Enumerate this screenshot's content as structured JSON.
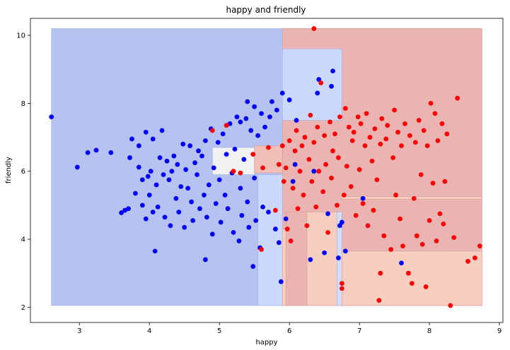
{
  "chart_data": {
    "type": "scatter",
    "title": "happy and friendly",
    "xlabel": "happy",
    "ylabel": "friendly",
    "xlim": [
      2.3,
      9.05
    ],
    "ylim": [
      1.55,
      10.5
    ],
    "xticks": [
      3,
      4,
      5,
      6,
      7,
      8,
      9
    ],
    "yticks": [
      2,
      4,
      6,
      8,
      10
    ],
    "grid": false,
    "colors": {
      "class0": "#0000ff",
      "class1": "#ff0000"
    },
    "decision_regions": [
      {
        "x": [
          2.6,
          8.75
        ],
        "y": [
          2.05,
          10.2
        ],
        "value": 0.0
      },
      {
        "x": [
          5.9,
          8.75
        ],
        "y": [
          2.05,
          10.2
        ],
        "value": 1.0
      },
      {
        "x": [
          5.9,
          6.75
        ],
        "y": [
          7.5,
          9.6
        ],
        "value": 0.25
      },
      {
        "x": [
          4.9,
          5.5
        ],
        "y": [
          5.9,
          6.7
        ],
        "value": 0.5
      },
      {
        "x": [
          5.5,
          5.9
        ],
        "y": [
          5.95,
          6.75
        ],
        "value": 0.9
      },
      {
        "x": [
          5.55,
          5.9
        ],
        "y": [
          2.05,
          5.9
        ],
        "value": 0.25
      },
      {
        "x": [
          5.9,
          5.95
        ],
        "y": [
          2.05,
          4.3
        ],
        "value": 0.75
      },
      {
        "x": [
          5.95,
          6.25
        ],
        "y": [
          2.05,
          4.8
        ],
        "value": 1.0
      },
      {
        "x": [
          6.25,
          6.68
        ],
        "y": [
          2.05,
          4.8
        ],
        "value": 0.75
      },
      {
        "x": [
          6.68,
          6.75
        ],
        "y": [
          2.05,
          4.8
        ],
        "value": 0.3
      },
      {
        "x": [
          6.75,
          8.75
        ],
        "y": [
          2.05,
          3.65
        ],
        "value": 0.75
      },
      {
        "x": [
          6.75,
          8.75
        ],
        "y": [
          5.18,
          5.25
        ],
        "value": 0.75
      }
    ],
    "series": [
      {
        "class": 0,
        "points": [
          [
            2.6,
            7.6
          ],
          [
            2.97,
            6.12
          ],
          [
            3.12,
            6.55
          ],
          [
            3.24,
            6.62
          ],
          [
            3.45,
            6.55
          ],
          [
            3.6,
            4.78
          ],
          [
            3.65,
            4.85
          ],
          [
            3.7,
            4.9
          ],
          [
            3.72,
            6.4
          ],
          [
            3.75,
            6.95
          ],
          [
            3.8,
            5.35
          ],
          [
            3.85,
            6.12
          ],
          [
            3.85,
            6.75
          ],
          [
            3.9,
            5.0
          ],
          [
            3.9,
            5.75
          ],
          [
            3.95,
            7.15
          ],
          [
            3.95,
            4.6
          ],
          [
            3.98,
            5.85
          ],
          [
            4.0,
            5.3
          ],
          [
            4.02,
            6.0
          ],
          [
            4.05,
            4.8
          ],
          [
            4.05,
            6.95
          ],
          [
            4.08,
            3.65
          ],
          [
            4.1,
            5.6
          ],
          [
            4.12,
            4.95
          ],
          [
            4.15,
            6.4
          ],
          [
            4.18,
            7.2
          ],
          [
            4.2,
            5.9
          ],
          [
            4.22,
            4.65
          ],
          [
            4.25,
            6.3
          ],
          [
            4.28,
            5.75
          ],
          [
            4.3,
            4.4
          ],
          [
            4.32,
            6.0
          ],
          [
            4.35,
            6.45
          ],
          [
            4.38,
            5.2
          ],
          [
            4.4,
            6.2
          ],
          [
            4.42,
            4.8
          ],
          [
            4.45,
            5.55
          ],
          [
            4.48,
            6.8
          ],
          [
            4.5,
            4.35
          ],
          [
            4.52,
            6.05
          ],
          [
            4.55,
            5.5
          ],
          [
            4.58,
            6.75
          ],
          [
            4.6,
            5.1
          ],
          [
            4.62,
            4.55
          ],
          [
            4.65,
            6.25
          ],
          [
            4.68,
            5.9
          ],
          [
            4.7,
            6.6
          ],
          [
            4.72,
            4.9
          ],
          [
            4.75,
            6.45
          ],
          [
            4.78,
            5.3
          ],
          [
            4.8,
            3.4
          ],
          [
            4.8,
            6.9
          ],
          [
            4.82,
            4.65
          ],
          [
            4.85,
            5.6
          ],
          [
            4.88,
            7.25
          ],
          [
            4.9,
            4.15
          ],
          [
            4.92,
            6.1
          ],
          [
            4.95,
            5.05
          ],
          [
            4.98,
            6.85
          ],
          [
            5.0,
            5.75
          ],
          [
            5.02,
            4.5
          ],
          [
            5.05,
            7.1
          ],
          [
            5.08,
            5.3
          ],
          [
            5.1,
            6.5
          ],
          [
            5.12,
            4.9
          ],
          [
            5.15,
            7.4
          ],
          [
            5.18,
            5.95
          ],
          [
            5.2,
            4.2
          ],
          [
            5.22,
            6.65
          ],
          [
            5.25,
            7.6
          ],
          [
            5.28,
            3.95
          ],
          [
            5.3,
            5.5
          ],
          [
            5.3,
            7.45
          ],
          [
            5.32,
            4.7
          ],
          [
            5.35,
            6.35
          ],
          [
            5.38,
            7.55
          ],
          [
            5.4,
            5.1
          ],
          [
            5.4,
            8.05
          ],
          [
            5.42,
            4.35
          ],
          [
            5.45,
            7.2
          ],
          [
            5.48,
            3.2
          ],
          [
            5.5,
            5.8
          ],
          [
            5.5,
            7.9
          ],
          [
            5.52,
            4.55
          ],
          [
            5.55,
            7.05
          ],
          [
            5.58,
            3.75
          ],
          [
            5.6,
            7.7
          ],
          [
            5.62,
            4.95
          ],
          [
            5.65,
            7.3
          ],
          [
            5.7,
            4.8
          ],
          [
            5.72,
            7.6
          ],
          [
            5.75,
            8.05
          ],
          [
            5.8,
            4.3
          ],
          [
            5.82,
            7.8
          ],
          [
            5.85,
            3.9
          ],
          [
            5.88,
            2.75
          ],
          [
            5.9,
            8.3
          ],
          [
            5.95,
            4.6
          ],
          [
            6.0,
            8.1
          ],
          [
            6.05,
            5.7
          ],
          [
            6.08,
            6.2
          ],
          [
            6.1,
            7.5
          ],
          [
            6.3,
            3.4
          ],
          [
            6.35,
            6.0
          ],
          [
            6.4,
            8.3
          ],
          [
            6.42,
            8.7
          ],
          [
            6.5,
            3.6
          ],
          [
            6.55,
            4.75
          ],
          [
            6.6,
            8.5
          ],
          [
            6.62,
            8.95
          ],
          [
            6.7,
            3.45
          ],
          [
            6.72,
            4.4
          ],
          [
            6.75,
            4.5
          ],
          [
            6.8,
            3.65
          ],
          [
            7.05,
            5.2
          ],
          [
            7.6,
            3.3
          ]
        ]
      },
      {
        "class": 1,
        "points": [
          [
            4.9,
            7.2
          ],
          [
            5.1,
            7.35
          ],
          [
            5.2,
            6.0
          ],
          [
            5.3,
            5.95
          ],
          [
            5.48,
            6.5
          ],
          [
            5.6,
            3.7
          ],
          [
            5.62,
            6.1
          ],
          [
            5.7,
            6.7
          ],
          [
            5.8,
            4.85
          ],
          [
            5.85,
            6.2
          ],
          [
            5.9,
            6.75
          ],
          [
            5.92,
            5.7
          ],
          [
            5.95,
            6.1
          ],
          [
            5.97,
            4.3
          ],
          [
            6.0,
            6.9
          ],
          [
            6.02,
            3.95
          ],
          [
            6.05,
            5.5
          ],
          [
            6.08,
            6.6
          ],
          [
            6.1,
            7.2
          ],
          [
            6.12,
            4.9
          ],
          [
            6.15,
            6.0
          ],
          [
            6.18,
            6.75
          ],
          [
            6.2,
            5.3
          ],
          [
            6.22,
            7.0
          ],
          [
            6.25,
            4.4
          ],
          [
            6.28,
            6.35
          ],
          [
            6.3,
            7.65
          ],
          [
            6.32,
            5.7
          ],
          [
            6.35,
            6.85
          ],
          [
            6.35,
            10.2
          ],
          [
            6.38,
            4.95
          ],
          [
            6.4,
            7.3
          ],
          [
            6.42,
            6.0
          ],
          [
            6.45,
            8.6
          ],
          [
            6.48,
            5.4
          ],
          [
            6.5,
            7.05
          ],
          [
            6.52,
            6.2
          ],
          [
            6.55,
            4.2
          ],
          [
            6.58,
            7.45
          ],
          [
            6.6,
            5.8
          ],
          [
            6.62,
            6.6
          ],
          [
            6.65,
            7.1
          ],
          [
            6.68,
            5.0
          ],
          [
            6.7,
            6.4
          ],
          [
            6.72,
            7.6
          ],
          [
            6.75,
            2.55
          ],
          [
            6.75,
            2.7
          ],
          [
            6.78,
            5.3
          ],
          [
            6.8,
            7.85
          ],
          [
            6.82,
            6.15
          ],
          [
            6.85,
            7.3
          ],
          [
            6.88,
            5.55
          ],
          [
            6.9,
            6.9
          ],
          [
            6.92,
            7.15
          ],
          [
            6.95,
            4.7
          ],
          [
            6.98,
            7.6
          ],
          [
            7.0,
            6.05
          ],
          [
            7.02,
            7.4
          ],
          [
            7.05,
            5.05
          ],
          [
            7.08,
            6.75
          ],
          [
            7.1,
            7.7
          ],
          [
            7.12,
            4.4
          ],
          [
            7.15,
            7.0
          ],
          [
            7.18,
            6.3
          ],
          [
            7.2,
            4.85
          ],
          [
            7.22,
            7.25
          ],
          [
            7.25,
            5.75
          ],
          [
            7.28,
            2.2
          ],
          [
            7.3,
            3.0
          ],
          [
            7.3,
            6.8
          ],
          [
            7.32,
            7.55
          ],
          [
            7.35,
            4.1
          ],
          [
            7.38,
            6.95
          ],
          [
            7.4,
            7.35
          ],
          [
            7.45,
            3.7
          ],
          [
            7.48,
            6.4
          ],
          [
            7.5,
            7.8
          ],
          [
            7.52,
            5.3
          ],
          [
            7.55,
            7.15
          ],
          [
            7.58,
            4.6
          ],
          [
            7.6,
            6.75
          ],
          [
            7.62,
            3.8
          ],
          [
            7.65,
            7.4
          ],
          [
            7.7,
            3.0
          ],
          [
            7.72,
            7.05
          ],
          [
            7.75,
            2.7
          ],
          [
            7.78,
            5.2
          ],
          [
            7.8,
            6.85
          ],
          [
            7.82,
            4.1
          ],
          [
            7.85,
            7.5
          ],
          [
            7.88,
            5.9
          ],
          [
            7.9,
            3.85
          ],
          [
            7.92,
            7.2
          ],
          [
            7.95,
            2.6
          ],
          [
            7.97,
            6.75
          ],
          [
            8.0,
            4.55
          ],
          [
            8.02,
            8.0
          ],
          [
            8.05,
            5.65
          ],
          [
            8.08,
            7.7
          ],
          [
            8.1,
            3.95
          ],
          [
            8.12,
            6.9
          ],
          [
            8.15,
            4.75
          ],
          [
            8.18,
            7.4
          ],
          [
            8.2,
            4.45
          ],
          [
            8.22,
            5.7
          ],
          [
            8.25,
            7.1
          ],
          [
            8.3,
            2.05
          ],
          [
            8.35,
            4.05
          ],
          [
            8.4,
            8.15
          ],
          [
            8.55,
            3.35
          ],
          [
            8.65,
            3.45
          ],
          [
            8.72,
            3.8
          ]
        ]
      }
    ]
  }
}
